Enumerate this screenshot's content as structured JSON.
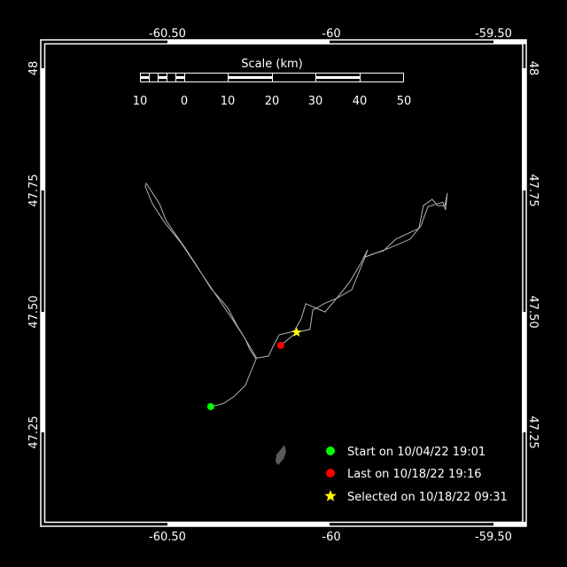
{
  "map": {
    "background": "#000000",
    "lon_labels": [
      "-60.50",
      "-60",
      "-59.50"
    ],
    "lon_ticks": [
      -60.5,
      -60.0,
      -59.5
    ],
    "lat_labels": [
      "48",
      "47.75",
      "47.50",
      "47.25"
    ],
    "lat_ticks": [
      48,
      47.75,
      47.5,
      47.25
    ],
    "track_color": "#b4b4b4",
    "land_color": "#5a5a5a",
    "track": [
      [
        -60.372,
        47.303
      ],
      [
        -60.358,
        47.305
      ],
      [
        -60.331,
        47.31
      ],
      [
        -60.298,
        47.325
      ],
      [
        -60.265,
        47.347
      ],
      [
        -60.249,
        47.374
      ],
      [
        -60.232,
        47.401
      ],
      [
        -60.251,
        47.42
      ],
      [
        -60.265,
        47.442
      ],
      [
        -60.29,
        47.469
      ],
      [
        -60.32,
        47.507
      ],
      [
        -60.372,
        47.547
      ],
      [
        -60.415,
        47.593
      ],
      [
        -60.454,
        47.633
      ],
      [
        -60.489,
        47.666
      ],
      [
        -60.511,
        47.688
      ],
      [
        -60.53,
        47.721
      ],
      [
        -60.571,
        47.763
      ],
      [
        -60.574,
        47.757
      ],
      [
        -60.552,
        47.721
      ],
      [
        -60.516,
        47.684
      ],
      [
        -60.462,
        47.639
      ],
      [
        -60.407,
        47.584
      ],
      [
        -60.352,
        47.529
      ],
      [
        -60.306,
        47.484
      ],
      [
        -60.27,
        47.447
      ],
      [
        -60.23,
        47.403
      ],
      [
        -60.194,
        47.407
      ],
      [
        -60.178,
        47.429
      ],
      [
        -60.161,
        47.451
      ],
      [
        -60.115,
        47.458
      ],
      [
        -60.093,
        47.484
      ],
      [
        -60.079,
        47.515
      ],
      [
        -60.019,
        47.498
      ],
      [
        -59.984,
        47.526
      ],
      [
        -59.943,
        47.56
      ],
      [
        -59.91,
        47.597
      ],
      [
        -59.888,
        47.626
      ],
      [
        -59.896,
        47.611
      ],
      [
        -59.874,
        47.617
      ],
      [
        -59.839,
        47.624
      ],
      [
        -59.801,
        47.648
      ],
      [
        -59.73,
        47.67
      ],
      [
        -59.716,
        47.717
      ],
      [
        -59.689,
        47.73
      ],
      [
        -59.672,
        47.717
      ],
      [
        -59.65,
        47.717
      ],
      [
        -59.642,
        47.743
      ],
      [
        -59.648,
        47.708
      ],
      [
        -59.656,
        47.724
      ],
      [
        -59.702,
        47.715
      ],
      [
        -59.724,
        47.675
      ],
      [
        -59.757,
        47.648
      ],
      [
        -59.82,
        47.63
      ],
      [
        -59.896,
        47.611
      ],
      [
        -59.937,
        47.544
      ],
      [
        -59.984,
        47.526
      ],
      [
        -60.019,
        47.516
      ],
      [
        -60.057,
        47.502
      ],
      [
        -60.066,
        47.462
      ],
      [
        -60.107,
        47.456
      ],
      [
        -60.156,
        47.429
      ]
    ],
    "start_point": [
      -60.372,
      47.303
    ],
    "last_point": [
      -60.156,
      47.429
    ],
    "selected_point": [
      -60.107,
      47.456
    ]
  },
  "scale_bar": {
    "title": "Scale (km)",
    "labels": [
      "10",
      "0",
      "10",
      "20",
      "30",
      "40",
      "50"
    ]
  },
  "legend": {
    "items": [
      {
        "label": "Start on 10/04/22 19:01",
        "color": "#00ff00",
        "icon": "circle"
      },
      {
        "label": "Last on 10/18/22 19:16",
        "color": "#ff0000",
        "icon": "circle"
      },
      {
        "label": "Selected on 10/18/22 09:31",
        "color": "#ffff00",
        "icon": "star"
      }
    ]
  }
}
